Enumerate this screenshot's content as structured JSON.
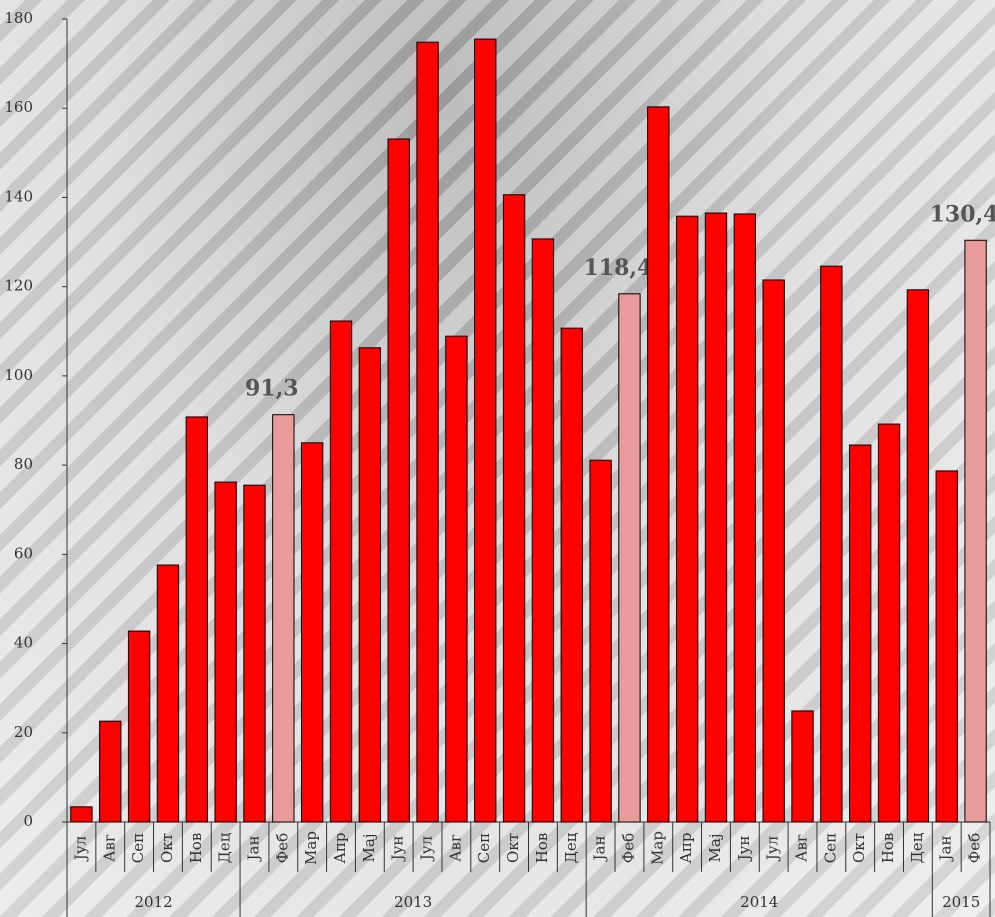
{
  "chart_data": {
    "type": "bar",
    "category_groups": [
      {
        "label": "2012",
        "categories": [
          "Јул",
          "Авг",
          "Сеп",
          "Окт",
          "Нов",
          "Дец"
        ]
      },
      {
        "label": "2013",
        "categories": [
          "Јан",
          "Феб",
          "Мар",
          "Апр",
          "Мај",
          "Јун",
          "Јул",
          "Авг",
          "Сеп",
          "Окт",
          "Нов",
          "Дец"
        ]
      },
      {
        "label": "2014",
        "categories": [
          "Јан",
          "Феб",
          "Мар",
          "Апр",
          "Мај",
          "Јун",
          "Јул",
          "Авг",
          "Сеп",
          "Окт",
          "Нов",
          "Дец"
        ]
      },
      {
        "label": "2015",
        "categories": [
          "Јан",
          "Феб"
        ]
      }
    ],
    "values": [
      3.4,
      22.6,
      42.8,
      57.6,
      90.8,
      76.2,
      75.5,
      91.3,
      85.0,
      112.3,
      106.3,
      153.1,
      174.8,
      108.9,
      175.5,
      140.6,
      130.7,
      110.7,
      81.1,
      118.4,
      160.3,
      135.8,
      136.5,
      136.3,
      121.5,
      24.9,
      124.6,
      84.5,
      89.2,
      119.3,
      78.7,
      130.4
    ],
    "value_labels": [
      null,
      null,
      null,
      null,
      null,
      null,
      null,
      "91,3",
      null,
      null,
      null,
      null,
      null,
      null,
      null,
      null,
      null,
      null,
      null,
      "118,4",
      null,
      null,
      null,
      null,
      null,
      null,
      null,
      null,
      null,
      null,
      null,
      "130,4"
    ],
    "colors": [
      "#ff0000",
      "#ff0000",
      "#ff0000",
      "#ff0000",
      "#ff0000",
      "#ff0000",
      "#ff0000",
      "#e99a9a",
      "#ff0000",
      "#ff0000",
      "#ff0000",
      "#ff0000",
      "#ff0000",
      "#ff0000",
      "#ff0000",
      "#ff0000",
      "#ff0000",
      "#ff0000",
      "#ff0000",
      "#e99a9a",
      "#ff0000",
      "#ff0000",
      "#ff0000",
      "#ff0000",
      "#ff0000",
      "#ff0000",
      "#ff0000",
      "#ff0000",
      "#ff0000",
      "#ff0000",
      "#ff0000",
      "#e99a9a"
    ],
    "ylim": [
      0,
      180
    ],
    "yticks": [
      0,
      20,
      40,
      60,
      80,
      100,
      120,
      140,
      160,
      180
    ],
    "grid": false
  }
}
